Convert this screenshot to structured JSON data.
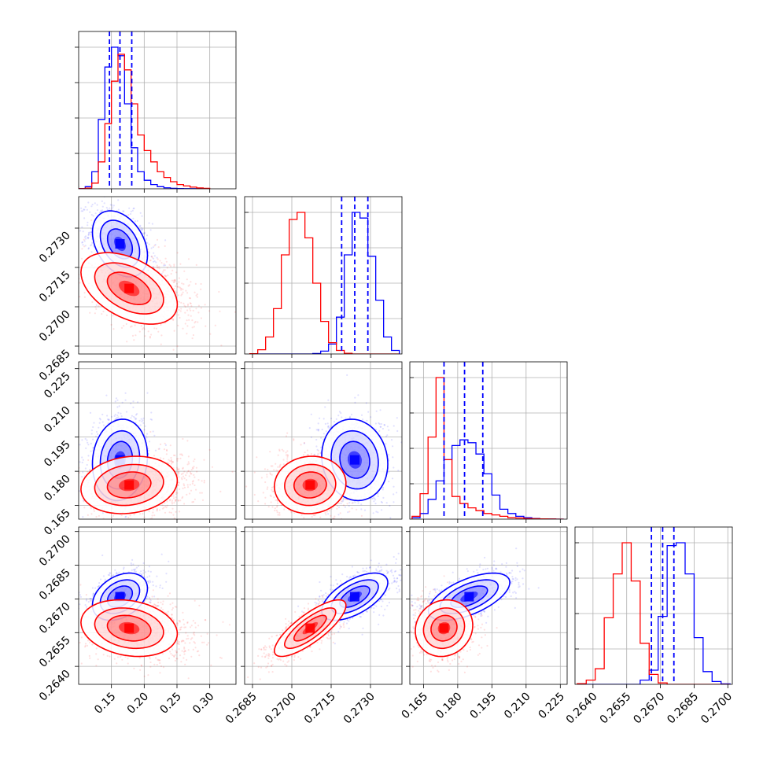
{
  "chart_data": {
    "type": "corner",
    "n_params": 4,
    "series": [
      {
        "name": "blue",
        "color": "#0000ff"
      },
      {
        "name": "red",
        "color": "#ff0000"
      }
    ],
    "axes": [
      {
        "range": [
          0.1,
          0.34
        ],
        "ticks": [
          0.15,
          0.2,
          0.25,
          0.3
        ],
        "tick_labels": [
          "0.15",
          "0.20",
          "0.25",
          "0.30"
        ]
      },
      {
        "range": [
          0.2682,
          0.2742
        ],
        "ticks": [
          0.2685,
          0.27,
          0.2715,
          0.273
        ],
        "tick_labels": [
          "0.2685",
          "0.2700",
          "0.2715",
          "0.2730"
        ]
      },
      {
        "range": [
          0.159,
          0.228
        ],
        "ticks": [
          0.165,
          0.18,
          0.195,
          0.21,
          0.225
        ],
        "tick_labels": [
          "0.165",
          "0.180",
          "0.195",
          "0.210",
          "0.225"
        ]
      },
      {
        "range": [
          0.2632,
          0.2702
        ],
        "ticks": [
          0.264,
          0.2655,
          0.267,
          0.2685,
          0.27
        ],
        "tick_labels": [
          "0.2640",
          "0.2655",
          "0.2670",
          "0.2685",
          "0.2700"
        ]
      }
    ],
    "marginals": [
      {
        "param": 0,
        "hists": [
          {
            "series": "blue",
            "bin_edges": [
              0.1,
              0.11,
              0.12,
              0.13,
              0.14,
              0.15,
              0.16,
              0.17,
              0.18,
              0.19,
              0.2,
              0.21,
              0.22,
              0.23,
              0.24,
              0.25,
              0.26,
              0.27,
              0.28,
              0.29,
              0.3
            ],
            "counts": [
              2,
              15,
              120,
              490,
              860,
              1000,
              940,
              600,
              290,
              120,
              60,
              30,
              15,
              7,
              3,
              2,
              1,
              1,
              0,
              0
            ]
          },
          {
            "series": "red",
            "bin_edges": [
              0.1,
              0.11,
              0.12,
              0.13,
              0.14,
              0.15,
              0.16,
              0.17,
              0.18,
              0.19,
              0.2,
              0.21,
              0.22,
              0.23,
              0.24,
              0.25,
              0.26,
              0.27,
              0.28,
              0.29,
              0.3
            ],
            "counts": [
              1,
              5,
              40,
              190,
              460,
              760,
              950,
              840,
              600,
              380,
              270,
              190,
              120,
              80,
              50,
              30,
              20,
              12,
              6,
              3
            ]
          }
        ],
        "quantiles": [
          0.147,
          0.163,
          0.181
        ]
      },
      {
        "param": 1,
        "hists": [
          {
            "series": "blue",
            "bin_edges": [
              0.2684,
              0.2687,
              0.269,
              0.2693,
              0.2696,
              0.2699,
              0.2702,
              0.2705,
              0.2708,
              0.2711,
              0.2714,
              0.2717,
              0.272,
              0.2723,
              0.2726,
              0.2729,
              0.2732,
              0.2735,
              0.2738,
              0.2741
            ],
            "counts": [
              0,
              0,
              0,
              0,
              0,
              0,
              0,
              0,
              3,
              20,
              70,
              260,
              700,
              1000,
              960,
              690,
              380,
              120,
              25
            ]
          },
          {
            "series": "red",
            "bin_edges": [
              0.2684,
              0.2687,
              0.269,
              0.2693,
              0.2696,
              0.2699,
              0.2702,
              0.2705,
              0.2708,
              0.2711,
              0.2714,
              0.2717,
              0.272,
              0.2723,
              0.2726,
              0.2729,
              0.2732,
              0.2735,
              0.2738,
              0.2741
            ],
            "counts": [
              2,
              30,
              120,
              320,
              700,
              950,
              1000,
              820,
              500,
              230,
              80,
              25,
              5,
              0,
              0,
              0,
              0,
              0,
              0
            ]
          }
        ],
        "quantiles": [
          0.2719,
          0.2724,
          0.2729
        ]
      },
      {
        "param": 2,
        "hists": [
          {
            "series": "blue",
            "bin_edges": [
              0.16,
              0.1635,
              0.167,
              0.1705,
              0.174,
              0.1775,
              0.181,
              0.1845,
              0.188,
              0.1915,
              0.195,
              0.1985,
              0.202,
              0.2055,
              0.209,
              0.2125,
              0.216,
              0.2195,
              0.223,
              0.2265
            ],
            "counts": [
              10,
              40,
              140,
              270,
              420,
              520,
              560,
              540,
              460,
              320,
              170,
              70,
              40,
              20,
              10,
              5,
              2,
              1,
              0
            ]
          },
          {
            "series": "red",
            "bin_edges": [
              0.16,
              0.1635,
              0.167,
              0.1705,
              0.174,
              0.1775,
              0.181,
              0.1845,
              0.188,
              0.1915,
              0.195,
              0.1985,
              0.202,
              0.2055,
              0.209,
              0.2125,
              0.216,
              0.2195,
              0.223,
              0.2265
            ],
            "counts": [
              20,
              180,
              580,
              1000,
              420,
              160,
              110,
              80,
              60,
              40,
              30,
              20,
              10,
              8,
              5,
              3,
              2,
              1,
              0
            ]
          }
        ],
        "quantiles": [
          0.174,
          0.183,
          0.191
        ]
      },
      {
        "param": 3,
        "hists": [
          {
            "series": "blue",
            "bin_edges": [
              0.2633,
              0.2637,
              0.2641,
              0.2645,
              0.2649,
              0.2653,
              0.2657,
              0.2661,
              0.2665,
              0.2669,
              0.2673,
              0.2677,
              0.2681,
              0.2685,
              0.2689,
              0.2693,
              0.2697,
              0.2701
            ],
            "counts": [
              0,
              0,
              0,
              0,
              0,
              0,
              0,
              30,
              100,
              480,
              980,
              1000,
              780,
              330,
              90,
              20,
              3
            ]
          },
          {
            "series": "red",
            "bin_edges": [
              0.2633,
              0.2637,
              0.2641,
              0.2645,
              0.2649,
              0.2653,
              0.2657,
              0.2661,
              0.2665,
              0.2669,
              0.2673,
              0.2677,
              0.2681,
              0.2685,
              0.2689,
              0.2693,
              0.2697,
              0.2701
            ],
            "counts": [
              5,
              30,
              110,
              470,
              780,
              1000,
              730,
              290,
              70,
              10,
              0,
              0,
              0,
              0,
              0,
              0,
              0
            ]
          }
        ],
        "quantiles": [
          0.2666,
          0.2671,
          0.2676
        ]
      }
    ],
    "joints": [
      {
        "x": 0,
        "y": 1,
        "clusters": [
          {
            "series": "blue",
            "mean": [
              0.163,
              0.2724
            ],
            "sd": [
              0.02,
              0.0006
            ],
            "corr": -0.35,
            "n": 1100
          },
          {
            "series": "red",
            "mean": [
              0.177,
              0.2707
            ],
            "sd": [
              0.035,
              0.00065
            ],
            "corr": -0.45,
            "n": 1100
          }
        ]
      },
      {
        "x": 0,
        "y": 2,
        "clusters": [
          {
            "series": "blue",
            "mean": [
              0.163,
              0.185
            ],
            "sd": [
              0.02,
              0.0085
            ],
            "corr": 0.1,
            "n": 1000
          },
          {
            "series": "red",
            "mean": [
              0.177,
              0.174
            ],
            "sd": [
              0.035,
              0.006
            ],
            "corr": 0.15,
            "n": 1000
          }
        ]
      },
      {
        "x": 1,
        "y": 2,
        "clusters": [
          {
            "series": "blue",
            "mean": [
              0.2724,
              0.185
            ],
            "sd": [
              0.0006,
              0.0085
            ],
            "corr": -0.1,
            "n": 1000
          },
          {
            "series": "red",
            "mean": [
              0.2707,
              0.174
            ],
            "sd": [
              0.00065,
              0.006
            ],
            "corr": 0.05,
            "n": 1000
          }
        ]
      },
      {
        "x": 0,
        "y": 3,
        "clusters": [
          {
            "series": "blue",
            "mean": [
              0.163,
              0.2671
            ],
            "sd": [
              0.02,
              0.0005
            ],
            "corr": 0.35,
            "n": 1000
          },
          {
            "series": "red",
            "mean": [
              0.177,
              0.2657
            ],
            "sd": [
              0.035,
              0.0006
            ],
            "corr": -0.2,
            "n": 1000
          }
        ]
      },
      {
        "x": 1,
        "y": 3,
        "clusters": [
          {
            "series": "blue",
            "mean": [
              0.2724,
              0.2671
            ],
            "sd": [
              0.0006,
              0.0005
            ],
            "corr": 0.6,
            "n": 1000
          },
          {
            "series": "red",
            "mean": [
              0.2707,
              0.2657
            ],
            "sd": [
              0.00065,
              0.0006
            ],
            "corr": 0.8,
            "n": 1000
          }
        ]
      },
      {
        "x": 2,
        "y": 3,
        "clusters": [
          {
            "series": "blue",
            "mean": [
              0.185,
              0.2671
            ],
            "sd": [
              0.0085,
              0.0005
            ],
            "corr": 0.6,
            "n": 1000
          },
          {
            "series": "red",
            "mean": [
              0.174,
              0.2657
            ],
            "sd": [
              0.006,
              0.0006
            ],
            "corr": 0.1,
            "n": 1000
          }
        ]
      }
    ],
    "grid": true,
    "contour_levels_sigma": [
      1,
      2
    ],
    "title": "",
    "legend": "none"
  }
}
